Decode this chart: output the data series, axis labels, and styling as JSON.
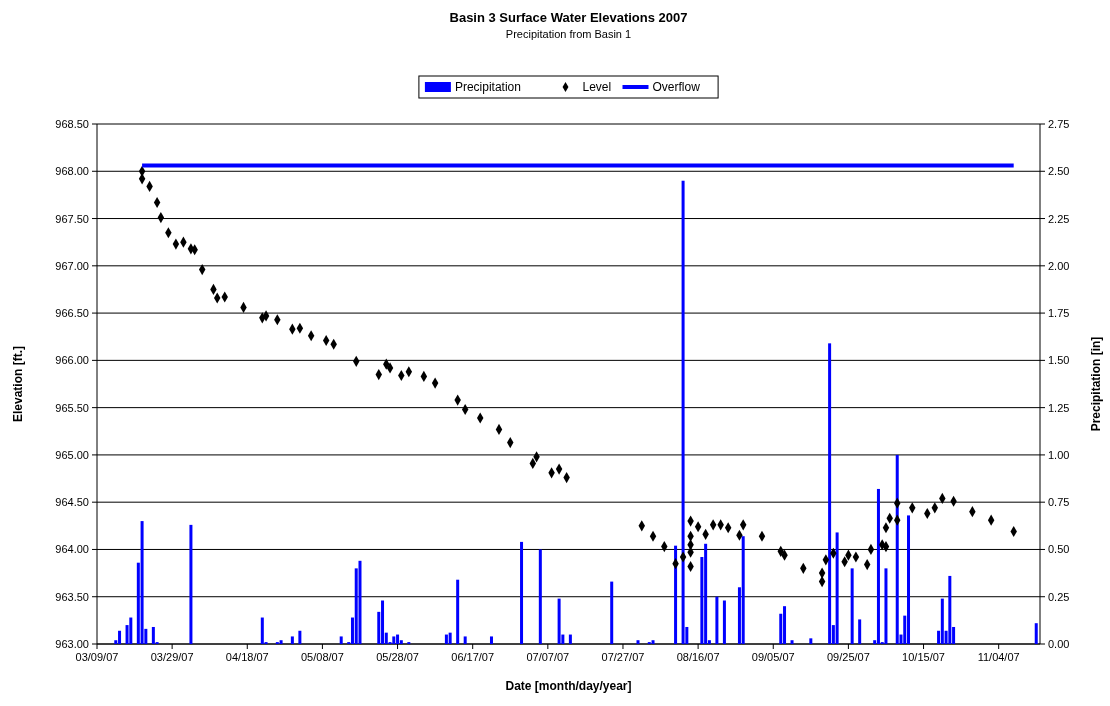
{
  "chart_data": {
    "type": "bar",
    "title": "Basin 3 Surface Water Elevations 2007",
    "subtitle": "Precipitation from Basin 1",
    "xlabel": "Date [month/day/year]",
    "ylabel": "Elevation [ft.]",
    "y2label": "Precipitation [in]",
    "xlim": [
      "2007-03-09",
      "2007-11-15"
    ],
    "xticks": [
      {
        "value": "2007-03-09",
        "label": "03/09/07"
      },
      {
        "value": "2007-03-29",
        "label": "03/29/07"
      },
      {
        "value": "2007-04-18",
        "label": "04/18/07"
      },
      {
        "value": "2007-05-08",
        "label": "05/08/07"
      },
      {
        "value": "2007-05-28",
        "label": "05/28/07"
      },
      {
        "value": "2007-06-17",
        "label": "06/17/07"
      },
      {
        "value": "2007-07-07",
        "label": "07/07/07"
      },
      {
        "value": "2007-07-27",
        "label": "07/27/07"
      },
      {
        "value": "2007-08-16",
        "label": "08/16/07"
      },
      {
        "value": "2007-09-05",
        "label": "09/05/07"
      },
      {
        "value": "2007-09-25",
        "label": "09/25/07"
      },
      {
        "value": "2007-10-15",
        "label": "10/15/07"
      },
      {
        "value": "2007-11-04",
        "label": "11/04/07"
      }
    ],
    "ylim": [
      963,
      968.5
    ],
    "yticks": [
      {
        "value": 963,
        "label": "963.00"
      },
      {
        "value": 963.5,
        "label": "963.50"
      },
      {
        "value": 964,
        "label": "964.00"
      },
      {
        "value": 964.5,
        "label": "964.50"
      },
      {
        "value": 965,
        "label": "965.00"
      },
      {
        "value": 965.5,
        "label": "965.50"
      },
      {
        "value": 966,
        "label": "966.00"
      },
      {
        "value": 966.5,
        "label": "966.50"
      },
      {
        "value": 967,
        "label": "967.00"
      },
      {
        "value": 967.5,
        "label": "967.50"
      },
      {
        "value": 968,
        "label": "968.00"
      },
      {
        "value": 968.5,
        "label": "968.50"
      }
    ],
    "y2lim": [
      0,
      2.75
    ],
    "y2ticks": [
      {
        "value": 0,
        "label": "0.00"
      },
      {
        "value": 0.25,
        "label": "0.25"
      },
      {
        "value": 0.5,
        "label": "0.50"
      },
      {
        "value": 0.75,
        "label": "0.75"
      },
      {
        "value": 1,
        "label": "1.00"
      },
      {
        "value": 1.25,
        "label": "1.25"
      },
      {
        "value": 1.5,
        "label": "1.50"
      },
      {
        "value": 1.75,
        "label": "1.75"
      },
      {
        "value": 2,
        "label": "2.00"
      },
      {
        "value": 2.25,
        "label": "2.25"
      },
      {
        "value": 2.5,
        "label": "2.50"
      },
      {
        "value": 2.75,
        "label": "2.75"
      }
    ],
    "grid": "y",
    "legend": "top",
    "series": [
      {
        "name": "Precipitation",
        "axis": "y2",
        "color": "#0000ff",
        "x": [
          "2007-03-14",
          "2007-03-15",
          "2007-03-17",
          "2007-03-18",
          "2007-03-20",
          "2007-03-21",
          "2007-03-22",
          "2007-03-24",
          "2007-03-25",
          "2007-04-03",
          "2007-04-22",
          "2007-04-23",
          "2007-04-26",
          "2007-04-27",
          "2007-04-30",
          "2007-05-02",
          "2007-05-13",
          "2007-05-15",
          "2007-05-16",
          "2007-05-17",
          "2007-05-18",
          "2007-05-23",
          "2007-05-24",
          "2007-05-25",
          "2007-05-26",
          "2007-05-27",
          "2007-05-28",
          "2007-05-29",
          "2007-05-31",
          "2007-06-10",
          "2007-06-11",
          "2007-06-13",
          "2007-06-15",
          "2007-06-22",
          "2007-06-30",
          "2007-07-05",
          "2007-07-10",
          "2007-07-11",
          "2007-07-13",
          "2007-07-24",
          "2007-07-31",
          "2007-08-03",
          "2007-08-04",
          "2007-08-10",
          "2007-08-12",
          "2007-08-13",
          "2007-08-17",
          "2007-08-18",
          "2007-08-19",
          "2007-08-21",
          "2007-08-23",
          "2007-08-27",
          "2007-08-28",
          "2007-09-07",
          "2007-09-08",
          "2007-09-10",
          "2007-09-15",
          "2007-09-20",
          "2007-09-21",
          "2007-09-22",
          "2007-09-26",
          "2007-09-28",
          "2007-10-02",
          "2007-10-03",
          "2007-10-04",
          "2007-10-05",
          "2007-10-08",
          "2007-10-09",
          "2007-10-10",
          "2007-10-11",
          "2007-10-19",
          "2007-10-20",
          "2007-10-21",
          "2007-10-22",
          "2007-10-23",
          "2007-11-14"
        ],
        "values": [
          0.02,
          0.07,
          0.1,
          0.14,
          0.43,
          0.65,
          0.08,
          0.09,
          0.01,
          0.63,
          0.14,
          0.01,
          0.01,
          0.02,
          0.04,
          0.07,
          0.04,
          0.01,
          0.14,
          0.4,
          0.44,
          0.17,
          0.23,
          0.06,
          0.01,
          0.04,
          0.05,
          0.02,
          0.01,
          0.05,
          0.06,
          0.34,
          0.04,
          0.04,
          0.54,
          0.5,
          0.24,
          0.05,
          0.05,
          0.33,
          0.02,
          0.01,
          0.02,
          0.52,
          2.45,
          0.09,
          0.46,
          0.53,
          0.02,
          0.25,
          0.23,
          0.3,
          0.57,
          0.16,
          0.2,
          0.02,
          0.03,
          1.59,
          0.1,
          0.59,
          0.4,
          0.13,
          0.02,
          0.82,
          0.01,
          0.4,
          1.0,
          0.05,
          0.15,
          0.68,
          0.07,
          0.24,
          0.07,
          0.36,
          0.09,
          0.11
        ]
      },
      {
        "name": "Level",
        "type": "scatter",
        "marker": "diamond",
        "color": "#000000",
        "x": [
          "2007-03-21",
          "2007-03-21",
          "2007-03-23",
          "2007-03-25",
          "2007-03-26",
          "2007-03-28",
          "2007-03-30",
          "2007-04-01",
          "2007-04-03",
          "2007-04-04",
          "2007-04-06",
          "2007-04-09",
          "2007-04-10",
          "2007-04-12",
          "2007-04-17",
          "2007-04-22",
          "2007-04-23",
          "2007-04-26",
          "2007-04-30",
          "2007-05-02",
          "2007-05-05",
          "2007-05-09",
          "2007-05-11",
          "2007-05-17",
          "2007-05-23",
          "2007-05-25",
          "2007-05-26",
          "2007-05-29",
          "2007-05-31",
          "2007-06-04",
          "2007-06-07",
          "2007-06-13",
          "2007-06-15",
          "2007-06-19",
          "2007-06-24",
          "2007-06-27",
          "2007-07-03",
          "2007-07-04",
          "2007-07-08",
          "2007-07-10",
          "2007-07-12",
          "2007-08-01",
          "2007-08-04",
          "2007-08-07",
          "2007-08-10",
          "2007-08-12",
          "2007-08-14",
          "2007-08-14",
          "2007-08-14",
          "2007-08-14",
          "2007-08-14",
          "2007-08-16",
          "2007-08-18",
          "2007-08-20",
          "2007-08-22",
          "2007-08-24",
          "2007-08-27",
          "2007-08-28",
          "2007-09-02",
          "2007-09-07",
          "2007-09-08",
          "2007-09-13",
          "2007-09-18",
          "2007-09-18",
          "2007-09-19",
          "2007-09-21",
          "2007-09-24",
          "2007-09-25",
          "2007-09-27",
          "2007-09-30",
          "2007-10-01",
          "2007-10-04",
          "2007-10-05",
          "2007-10-05",
          "2007-10-06",
          "2007-10-08",
          "2007-10-08",
          "2007-10-12",
          "2007-10-16",
          "2007-10-18",
          "2007-10-20",
          "2007-10-23",
          "2007-10-28",
          "2007-11-02",
          "2007-11-08"
        ],
        "values": [
          968.0,
          967.92,
          967.84,
          967.67,
          967.51,
          967.35,
          967.23,
          967.25,
          967.18,
          967.17,
          966.96,
          966.75,
          966.66,
          966.67,
          966.56,
          966.45,
          966.47,
          966.43,
          966.33,
          966.34,
          966.26,
          966.21,
          966.17,
          965.99,
          965.85,
          965.96,
          965.92,
          965.84,
          965.88,
          965.83,
          965.76,
          965.58,
          965.48,
          965.39,
          965.27,
          965.13,
          964.91,
          964.98,
          964.81,
          964.85,
          964.76,
          964.25,
          964.14,
          964.03,
          963.85,
          963.92,
          963.82,
          963.97,
          964.05,
          964.14,
          964.3,
          964.24,
          964.16,
          964.26,
          964.26,
          964.23,
          964.15,
          964.26,
          964.14,
          963.98,
          963.94,
          963.8,
          963.66,
          963.75,
          963.89,
          963.96,
          963.87,
          963.94,
          963.92,
          963.84,
          964.0,
          964.05,
          964.03,
          964.23,
          964.33,
          964.31,
          964.49,
          964.44,
          964.38,
          964.44,
          964.54,
          964.51,
          964.4,
          964.31,
          964.19
        ]
      },
      {
        "name": "Overflow",
        "type": "line",
        "color": "#0000ff",
        "x": [
          "2007-03-21",
          "2007-11-08"
        ],
        "values": [
          968.06,
          968.06
        ]
      }
    ]
  }
}
